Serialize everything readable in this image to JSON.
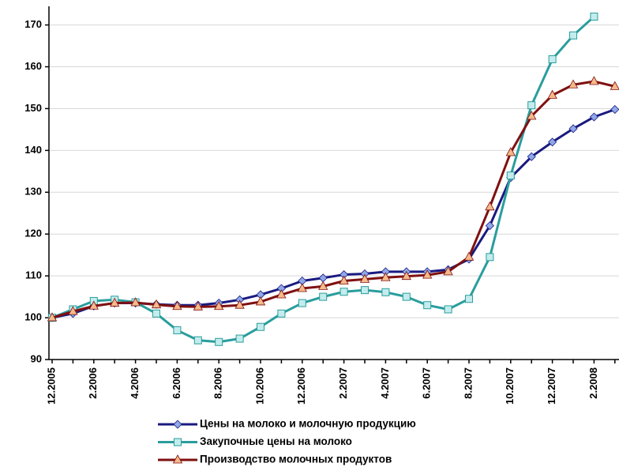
{
  "chart_data": {
    "type": "line",
    "categories": [
      "12.2005",
      null,
      "2.2006",
      null,
      "4.2006",
      null,
      "6.2006",
      null,
      "8.2006",
      null,
      "10.2006",
      null,
      "12.2006",
      null,
      "2.2007",
      null,
      "4.2007",
      null,
      "6.2007",
      null,
      "8.2007",
      null,
      "10.2007",
      null,
      "12.2007",
      null,
      "2.2008",
      null
    ],
    "series": [
      {
        "name": "Цены на молоко и молочную продукцию",
        "color": "#1a1a80",
        "marker_color": "#8fa8e8",
        "marker": "diamond",
        "values": [
          100,
          101,
          102.8,
          103.5,
          103.5,
          103.2,
          103,
          103,
          103.5,
          104.3,
          105.5,
          107,
          108.8,
          109.5,
          110.3,
          110.5,
          111,
          111,
          111,
          111.5,
          114,
          122,
          133.5,
          138.5,
          142,
          145.2,
          148,
          149.8
        ]
      },
      {
        "name": "Закупочные цены на молоко",
        "color": "#2a9d9d",
        "marker_color": "#c4ecec",
        "marker": "square",
        "values": [
          100,
          102,
          104,
          104.3,
          103.7,
          101,
          97,
          94.6,
          94.2,
          95,
          97.8,
          101,
          103.5,
          105,
          106.2,
          106.6,
          106.1,
          105,
          103,
          102,
          104.5,
          114.5,
          134,
          150.8,
          161.8,
          167.5,
          172,
          null
        ]
      },
      {
        "name": "Производство молочных продуктов",
        "color": "#7f1010",
        "marker_color": "#f5b98a",
        "marker": "triangle",
        "values": [
          100,
          101.5,
          102.8,
          103.5,
          103.6,
          103.1,
          102.7,
          102.6,
          102.7,
          103,
          103.8,
          105.5,
          107,
          107.5,
          108.8,
          109.2,
          109.6,
          109.9,
          110.2,
          111,
          114.5,
          126.5,
          139.5,
          148.2,
          153.2,
          155.7,
          156.5,
          155.3
        ]
      }
    ],
    "ylim": [
      90,
      172
    ],
    "yticks": [
      90,
      100,
      110,
      120,
      130,
      140,
      150,
      160,
      170
    ],
    "grid": true
  }
}
